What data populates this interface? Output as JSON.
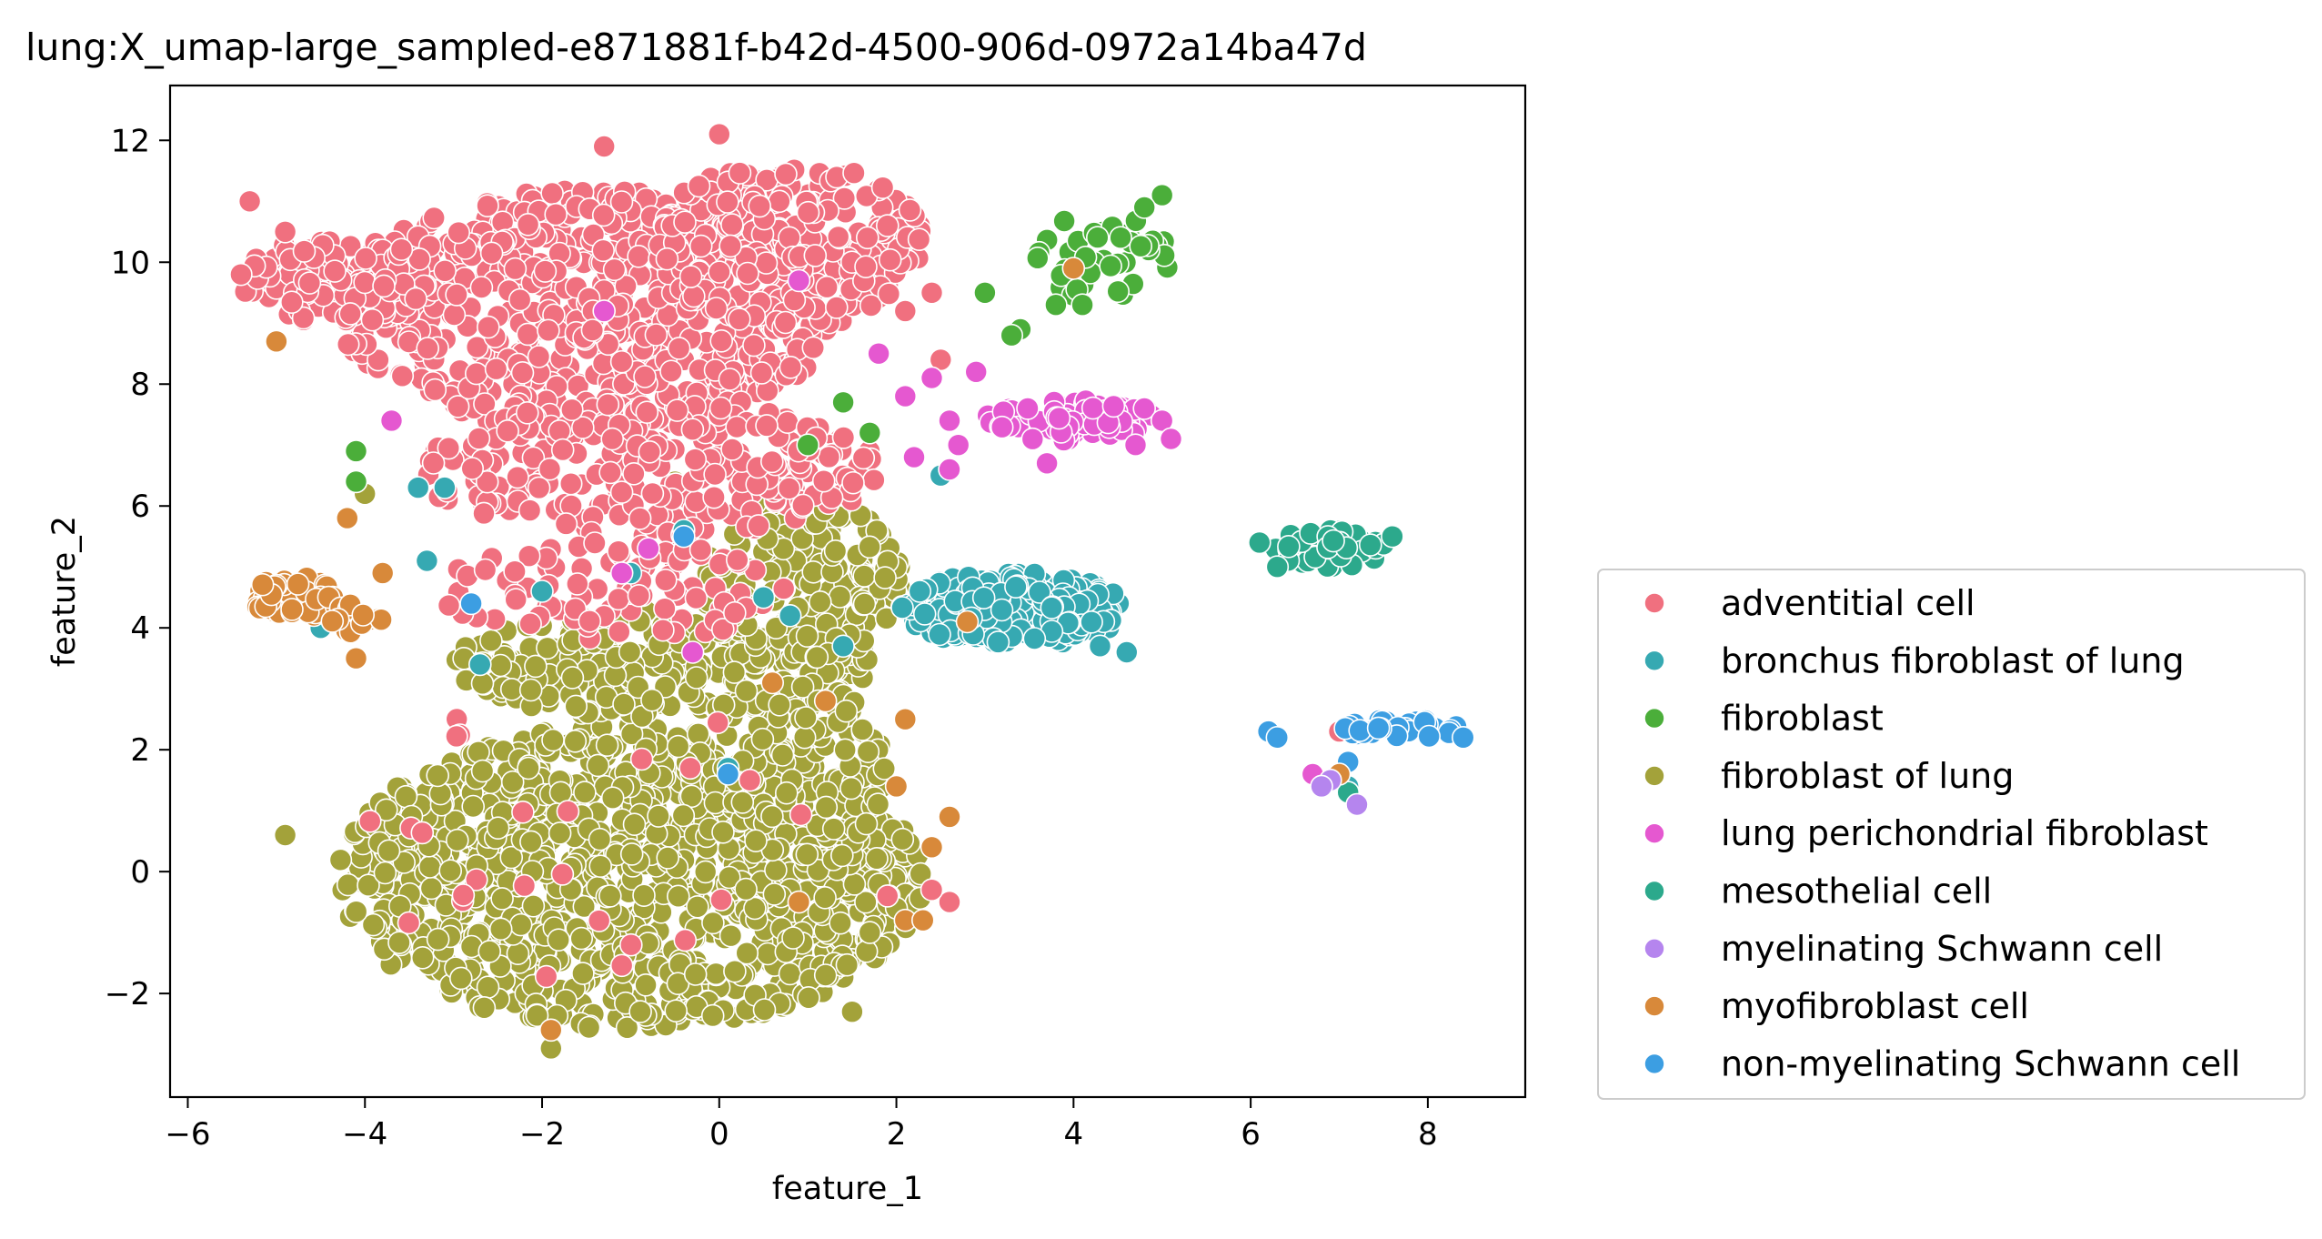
{
  "chart_data": {
    "type": "scatter",
    "title": "lung:X_umap-large_sampled-e871881f-b42d-4500-906d-0972a14ba47d",
    "xlabel": "feature_1",
    "ylabel": "feature_2",
    "xlim": [
      -6.2,
      9.1
    ],
    "ylim": [
      -3.7,
      12.9
    ],
    "xticks": [
      -6,
      -4,
      -2,
      0,
      2,
      4,
      6,
      8
    ],
    "yticks": [
      -2,
      0,
      2,
      4,
      6,
      8,
      10,
      12
    ],
    "grid": false,
    "legend_position": "lower-right, outside plot",
    "series": [
      {
        "name": "adventitial cell",
        "color": "#f0707f",
        "clusters": [
          {
            "cx": -1.5,
            "cy": 9.2,
            "rx": 2.8,
            "ry": 2.0,
            "n": 620
          },
          {
            "cx": 0.8,
            "cy": 10.3,
            "rx": 1.5,
            "ry": 1.4,
            "n": 240
          },
          {
            "cx": -4.3,
            "cy": 9.7,
            "rx": 1.1,
            "ry": 0.7,
            "n": 120
          },
          {
            "cx": -0.8,
            "cy": 6.6,
            "rx": 2.6,
            "ry": 1.1,
            "n": 260
          },
          {
            "cx": -1.2,
            "cy": 4.6,
            "rx": 2.0,
            "ry": 0.8,
            "n": 90
          },
          {
            "cx": -1.5,
            "cy": 0.5,
            "rx": 2.5,
            "ry": 2.5,
            "n": 25
          }
        ],
        "points": [
          [
            -5.3,
            11.0
          ],
          [
            0.0,
            12.1
          ],
          [
            -1.3,
            11.9
          ],
          [
            1.9,
            10.6
          ],
          [
            2.4,
            9.5
          ],
          [
            2.5,
            8.4
          ],
          [
            2.1,
            9.2
          ],
          [
            2.6,
            -0.5
          ],
          [
            2.4,
            -0.3
          ],
          [
            1.9,
            -0.4
          ],
          [
            7.0,
            2.3
          ],
          [
            -5.4,
            9.8
          ],
          [
            -4.9,
            10.5
          ]
        ]
      },
      {
        "name": "bronchus fibroblast of lung",
        "color": "#36a9b2",
        "clusters": [
          {
            "cx": 3.3,
            "cy": 4.3,
            "rx": 1.3,
            "ry": 0.6,
            "n": 230
          }
        ],
        "points": [
          [
            -3.4,
            6.3
          ],
          [
            -3.1,
            6.3
          ],
          [
            -3.3,
            5.1
          ],
          [
            -2.7,
            3.4
          ],
          [
            -2.0,
            4.6
          ],
          [
            -0.4,
            5.6
          ],
          [
            0.1,
            1.7
          ],
          [
            -4.5,
            4.0
          ],
          [
            4.6,
            3.6
          ],
          [
            4.3,
            3.7
          ],
          [
            4.0,
            9.5
          ],
          [
            7.1,
            1.4
          ],
          [
            2.5,
            6.5
          ],
          [
            -1.0,
            4.9
          ],
          [
            0.5,
            4.5
          ],
          [
            1.4,
            3.7
          ],
          [
            0.8,
            4.2
          ]
        ]
      },
      {
        "name": "fibroblast",
        "color": "#4bae3a",
        "clusters": [
          {
            "cx": 4.3,
            "cy": 10.1,
            "rx": 0.8,
            "ry": 0.7,
            "n": 42
          }
        ],
        "points": [
          [
            3.0,
            9.5
          ],
          [
            3.4,
            8.9
          ],
          [
            3.3,
            8.8
          ],
          [
            -4.1,
            6.9
          ],
          [
            -4.1,
            6.4
          ],
          [
            1.7,
            7.2
          ],
          [
            1.4,
            7.7
          ],
          [
            1.0,
            7.0
          ],
          [
            5.0,
            11.1
          ],
          [
            4.8,
            10.9
          ],
          [
            3.8,
            9.3
          ],
          [
            4.1,
            9.3
          ]
        ]
      },
      {
        "name": "fibroblast of lung",
        "color": "#a3a23a",
        "clusters": [
          {
            "cx": -1.0,
            "cy": -0.1,
            "rx": 3.3,
            "ry": 2.5,
            "n": 1050
          },
          {
            "cx": -0.6,
            "cy": 3.4,
            "rx": 2.4,
            "ry": 0.9,
            "n": 260
          },
          {
            "cx": 0.9,
            "cy": 4.8,
            "rx": 1.2,
            "ry": 1.4,
            "n": 150
          },
          {
            "cx": 1.0,
            "cy": 1.5,
            "rx": 0.9,
            "ry": 1.6,
            "n": 120
          }
        ],
        "points": [
          [
            -4.9,
            0.6
          ],
          [
            -1.9,
            -2.9
          ],
          [
            -4.0,
            6.2
          ],
          [
            -0.5,
            6.4
          ],
          [
            1.7,
            -1.0
          ],
          [
            2.0,
            -0.6
          ],
          [
            1.5,
            -2.3
          ],
          [
            1.2,
            -1.7
          ]
        ]
      },
      {
        "name": "lung perichondrial fibroblast",
        "color": "#e558d0",
        "clusters": [
          {
            "cx": 4.0,
            "cy": 7.4,
            "rx": 1.0,
            "ry": 0.35,
            "n": 85
          }
        ],
        "points": [
          [
            2.9,
            8.2
          ],
          [
            2.6,
            7.4
          ],
          [
            2.7,
            7.0
          ],
          [
            2.2,
            6.8
          ],
          [
            2.6,
            6.6
          ],
          [
            3.7,
            6.7
          ],
          [
            4.7,
            7.0
          ],
          [
            4.8,
            7.6
          ],
          [
            5.0,
            7.4
          ],
          [
            5.1,
            7.1
          ],
          [
            -1.3,
            9.2
          ],
          [
            0.9,
            9.7
          ],
          [
            1.8,
            8.5
          ],
          [
            2.1,
            7.8
          ],
          [
            2.4,
            8.1
          ],
          [
            -3.7,
            7.4
          ],
          [
            -0.8,
            5.3
          ],
          [
            -1.1,
            4.9
          ],
          [
            -0.3,
            3.6
          ],
          [
            6.7,
            1.6
          ]
        ]
      },
      {
        "name": "mesothelial cell",
        "color": "#2ca98c",
        "clusters": [
          {
            "cx": 6.9,
            "cy": 5.3,
            "rx": 0.7,
            "ry": 0.3,
            "n": 55
          }
        ],
        "points": [
          [
            6.1,
            5.4
          ],
          [
            6.3,
            5.0
          ],
          [
            7.1,
            1.3
          ],
          [
            7.6,
            5.5
          ]
        ]
      },
      {
        "name": "myelinating Schwann cell",
        "color": "#b585ee",
        "clusters": [],
        "points": [
          [
            6.9,
            1.5
          ],
          [
            7.2,
            1.1
          ],
          [
            6.8,
            1.4
          ]
        ]
      },
      {
        "name": "myofibroblast cell",
        "color": "#d8893a",
        "clusters": [
          {
            "cx": -4.8,
            "cy": 4.5,
            "rx": 0.5,
            "ry": 0.35,
            "n": 38
          },
          {
            "cx": -4.1,
            "cy": 4.2,
            "rx": 0.3,
            "ry": 0.3,
            "n": 12
          }
        ],
        "points": [
          [
            -5.0,
            8.7
          ],
          [
            -4.2,
            5.8
          ],
          [
            -4.1,
            3.5
          ],
          [
            -3.8,
            4.9
          ],
          [
            2.0,
            1.4
          ],
          [
            2.1,
            -0.8
          ],
          [
            2.3,
            -0.8
          ],
          [
            2.6,
            0.9
          ],
          [
            2.4,
            0.4
          ],
          [
            2.1,
            2.5
          ],
          [
            2.8,
            4.1
          ],
          [
            4.0,
            9.9
          ],
          [
            7.0,
            1.6
          ],
          [
            0.9,
            -0.5
          ],
          [
            -1.9,
            -2.6
          ],
          [
            0.6,
            3.1
          ],
          [
            1.2,
            2.8
          ]
        ]
      },
      {
        "name": "non-myelinating Schwann cell",
        "color": "#3c9ee2",
        "clusters": [
          {
            "cx": 7.7,
            "cy": 2.35,
            "rx": 0.65,
            "ry": 0.15,
            "n": 40
          }
        ],
        "points": [
          [
            6.2,
            2.3
          ],
          [
            6.3,
            2.2
          ],
          [
            7.1,
            1.8
          ],
          [
            8.4,
            2.2
          ],
          [
            -0.4,
            5.5
          ],
          [
            0.1,
            1.6
          ],
          [
            -2.8,
            4.4
          ]
        ]
      }
    ]
  }
}
